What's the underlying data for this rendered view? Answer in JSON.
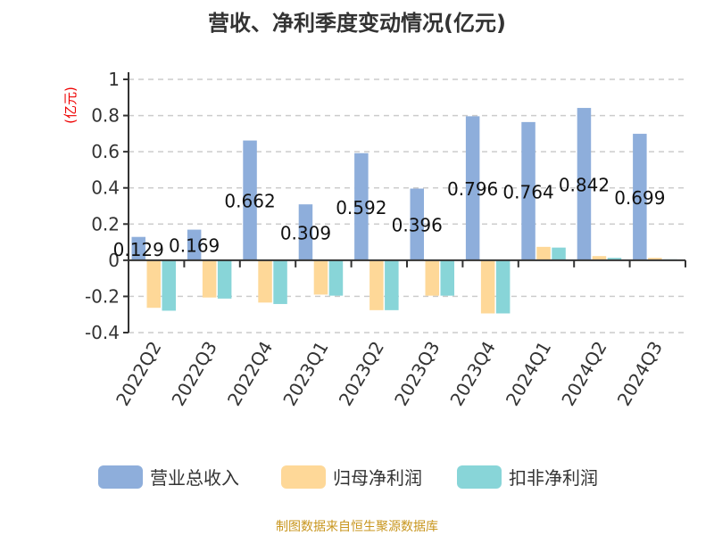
{
  "chart_data": {
    "type": "bar",
    "title": "营收、净利季度变动情况(亿元)",
    "ylabel": "(亿元)",
    "xlabel": "",
    "ylim": [
      -0.4,
      1
    ],
    "yticks": [
      -0.4,
      -0.2,
      0,
      0.2,
      0.4,
      0.6,
      0.8,
      1
    ],
    "ytick_labels": [
      "-0.4",
      "-0.2",
      "0",
      "0.2",
      "0.4",
      "0.6",
      "0.8",
      "1"
    ],
    "grid": true,
    "legend_position": "bottom",
    "categories": [
      "2022Q2",
      "2022Q3",
      "2022Q4",
      "2023Q1",
      "2023Q2",
      "2023Q3",
      "2023Q4",
      "2024Q1",
      "2024Q2",
      "2024Q3"
    ],
    "series": [
      {
        "name": "营业总收入",
        "color": "#8eaedb",
        "values": [
          0.129,
          0.169,
          0.662,
          0.309,
          0.592,
          0.396,
          0.796,
          0.764,
          0.842,
          0.699
        ],
        "labels": [
          "0.129",
          "0.169",
          "0.662",
          "0.309",
          "0.592",
          "0.396",
          "0.796",
          "0.764",
          "0.842",
          "0.699"
        ]
      },
      {
        "name": "归母净利润",
        "color": "#fed898",
        "values": [
          -0.263,
          -0.206,
          -0.234,
          -0.19,
          -0.276,
          -0.196,
          -0.294,
          0.074,
          0.023,
          0.013
        ]
      },
      {
        "name": "扣非净利润",
        "color": "#88d5d8",
        "values": [
          -0.279,
          -0.212,
          -0.242,
          -0.196,
          -0.276,
          -0.196,
          -0.294,
          0.07,
          0.013,
          0.005
        ]
      }
    ]
  },
  "footer": "制图数据来自恒生聚源数据库"
}
